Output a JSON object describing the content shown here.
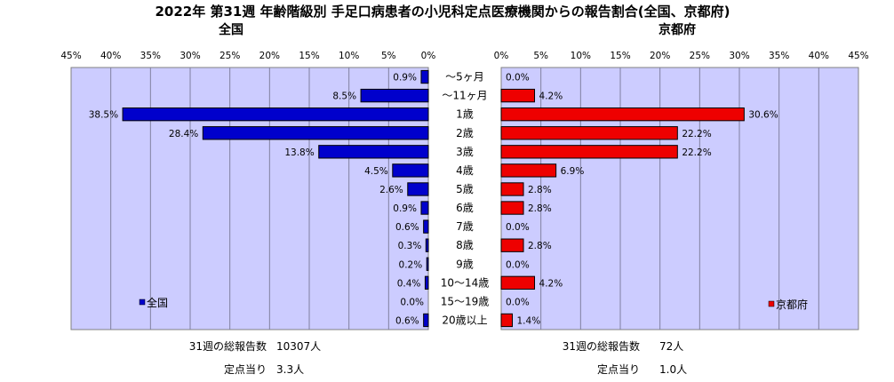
{
  "title": "2022年 第31週  年齢階級別 手足口病患者の小児科定点医療機関からの報告割合(全国、京都府)",
  "colors": {
    "plot_bg": "#ccccff",
    "left_bar": "#0000cc",
    "right_bar": "#ee0000",
    "grid": "#8080a0"
  },
  "chart_data": [
    {
      "type": "bar",
      "orientation": "horizontal",
      "direction": "right-to-left",
      "subtitle": "全国",
      "legend": "全国",
      "legend_position": "bottom-left",
      "categories": [
        "〜5ヶ月",
        "〜11ヶ月",
        "1歳",
        "2歳",
        "3歳",
        "4歳",
        "5歳",
        "6歳",
        "7歳",
        "8歳",
        "9歳",
        "10〜14歳",
        "15〜19歳",
        "20歳以上"
      ],
      "values": [
        0.9,
        8.5,
        38.5,
        28.4,
        13.8,
        4.5,
        2.6,
        0.9,
        0.6,
        0.3,
        0.2,
        0.4,
        0.0,
        0.6
      ],
      "value_labels": [
        "0.9%",
        "8.5%",
        "38.5%",
        "28.4%",
        "13.8%",
        "4.5%",
        "2.6%",
        "0.9%",
        "0.6%",
        "0.3%",
        "0.2%",
        "0.4%",
        "0.0%",
        "0.6%"
      ],
      "xlim": [
        0,
        45
      ],
      "ticks": [
        45,
        40,
        35,
        30,
        25,
        20,
        15,
        10,
        5,
        0
      ],
      "tick_labels": [
        "45%",
        "40%",
        "35%",
        "30%",
        "25%",
        "20%",
        "15%",
        "10%",
        "5%",
        "0%"
      ],
      "grid": true
    },
    {
      "type": "bar",
      "orientation": "horizontal",
      "direction": "left-to-right",
      "subtitle": "京都府",
      "legend": "京都府",
      "legend_position": "bottom-right",
      "categories": [
        "〜5ヶ月",
        "〜11ヶ月",
        "1歳",
        "2歳",
        "3歳",
        "4歳",
        "5歳",
        "6歳",
        "7歳",
        "8歳",
        "9歳",
        "10〜14歳",
        "15〜19歳",
        "20歳以上"
      ],
      "values": [
        0.0,
        4.2,
        30.6,
        22.2,
        22.2,
        6.9,
        2.8,
        2.8,
        0.0,
        2.8,
        0.0,
        4.2,
        0.0,
        1.4
      ],
      "value_labels": [
        "0.0%",
        "4.2%",
        "30.6%",
        "22.2%",
        "22.2%",
        "6.9%",
        "2.8%",
        "2.8%",
        "0.0%",
        "2.8%",
        "0.0%",
        "4.2%",
        "0.0%",
        "1.4%"
      ],
      "xlim": [
        0,
        45
      ],
      "ticks": [
        0,
        5,
        10,
        15,
        20,
        25,
        30,
        35,
        40,
        45
      ],
      "tick_labels": [
        "0%",
        "5%",
        "10%",
        "15%",
        "20%",
        "25%",
        "30%",
        "35%",
        "40%",
        "45%"
      ],
      "grid": true
    }
  ],
  "footer": {
    "left": {
      "total_label": "31週の総報告数",
      "total_value": "10307人",
      "per_label": "定点当り",
      "per_value": "3.3人"
    },
    "right": {
      "total_label": "31週の総報告数",
      "total_value": "72人",
      "per_label": "定点当り",
      "per_value": "1.0人"
    }
  }
}
